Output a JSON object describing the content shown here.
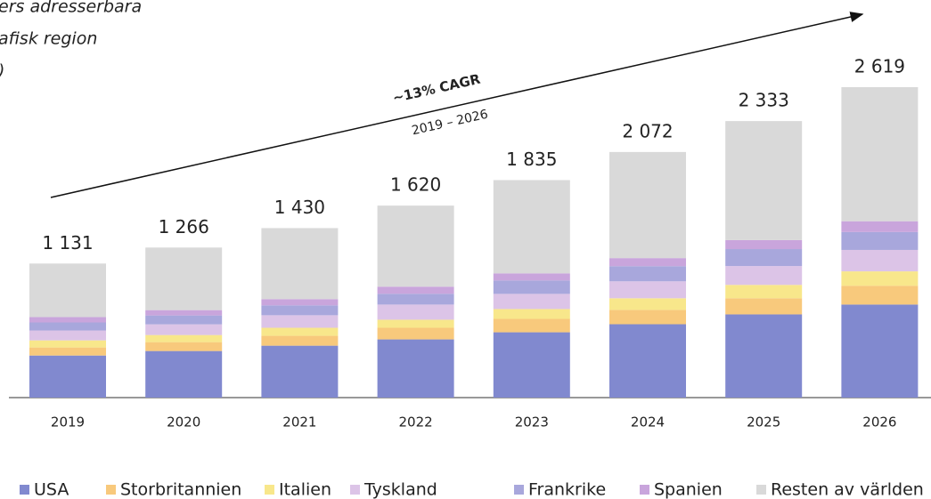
{
  "chart_data": {
    "type": "stacked-bar",
    "title_lines": [
      "ers adresserbara",
      "afisk region",
      ")"
    ],
    "annotation": "~13% CAGR",
    "annotation_period": "2019 – 2026",
    "categories": [
      "2019",
      "2020",
      "2021",
      "2022",
      "2023",
      "2024",
      "2025",
      "2026"
    ],
    "totals": [
      1131,
      1266,
      1430,
      1620,
      1835,
      2072,
      2333,
      2619
    ],
    "total_labels": [
      "1 131",
      "1 266",
      "1 430",
      "1 620",
      "1 835",
      "2 072",
      "2 333",
      "2 619"
    ],
    "series": [
      {
        "name": "USA",
        "color": "#8189cf",
        "values": [
          355,
          393,
          438,
          491,
          551,
          619,
          702,
          785
        ]
      },
      {
        "name": "Storbritannien",
        "color": "#f8c97c",
        "values": [
          68,
          75,
          83,
          98,
          113,
          121,
          136,
          159
        ]
      },
      {
        "name": "Italien",
        "color": "#f8e78b",
        "values": [
          60,
          60,
          68,
          68,
          83,
          98,
          113,
          121
        ]
      },
      {
        "name": "Tyskland",
        "color": "#dcc4e7",
        "values": [
          83,
          90,
          106,
          128,
          128,
          143,
          159,
          181
        ]
      },
      {
        "name": "Frankrike",
        "color": "#a8a7dc",
        "values": [
          68,
          75,
          83,
          91,
          113,
          128,
          143,
          151
        ]
      },
      {
        "name": "Spanien",
        "color": "#c9a5dc",
        "values": [
          45,
          45,
          53,
          60,
          60,
          68,
          76,
          91
        ]
      },
      {
        "name": "Resten av världen",
        "color": "#d9d9d9",
        "values": [
          452,
          528,
          599,
          684,
          787,
          895,
          1004,
          1131
        ]
      }
    ]
  }
}
